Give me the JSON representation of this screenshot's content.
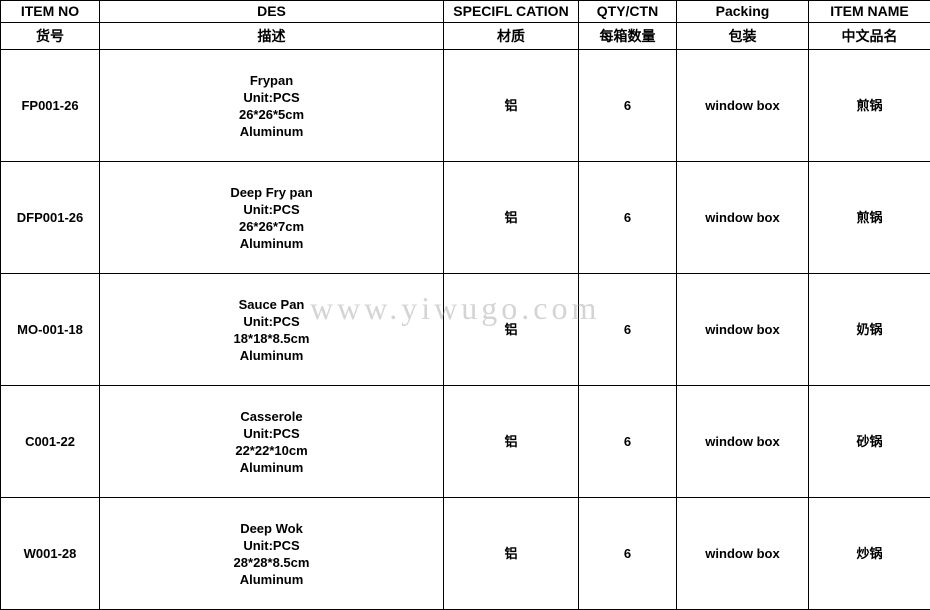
{
  "header_en": [
    "ITEM NO",
    "DES",
    "SPECIFL CATION",
    "QTY/CTN",
    "Packing",
    "ITEM NAME"
  ],
  "header_cn": [
    "货号",
    "描述",
    "材质",
    "每箱数量",
    "包装",
    "中文品名"
  ],
  "rows": [
    {
      "item_no": "FP001-26",
      "des": [
        "Frypan",
        "Unit:PCS",
        "26*26*5cm",
        "Aluminum"
      ],
      "spec": "铝",
      "qty": "6",
      "packing": "window box",
      "name_cn": "煎锅"
    },
    {
      "item_no": "DFP001-26",
      "des": [
        "Deep Fry pan",
        "Unit:PCS",
        "26*26*7cm",
        "Aluminum"
      ],
      "spec": "铝",
      "qty": "6",
      "packing": "window box",
      "name_cn": "煎锅"
    },
    {
      "item_no": "MO-001-18",
      "des": [
        "Sauce Pan",
        "Unit:PCS",
        "18*18*8.5cm",
        "Aluminum"
      ],
      "spec": "铝",
      "qty": "6",
      "packing": "window box",
      "name_cn": "奶锅"
    },
    {
      "item_no": "C001-22",
      "des": [
        "Casserole",
        "Unit:PCS",
        "22*22*10cm",
        "Aluminum"
      ],
      "spec": "铝",
      "qty": "6",
      "packing": "window box",
      "name_cn": "砂锅"
    },
    {
      "item_no": "W001-28",
      "des": [
        "Deep Wok",
        "Unit:PCS",
        "28*28*8.5cm",
        "Aluminum"
      ],
      "spec": "铝",
      "qty": "6",
      "packing": "window box",
      "name_cn": "炒锅"
    }
  ],
  "watermark": "www.yiwugo.com"
}
